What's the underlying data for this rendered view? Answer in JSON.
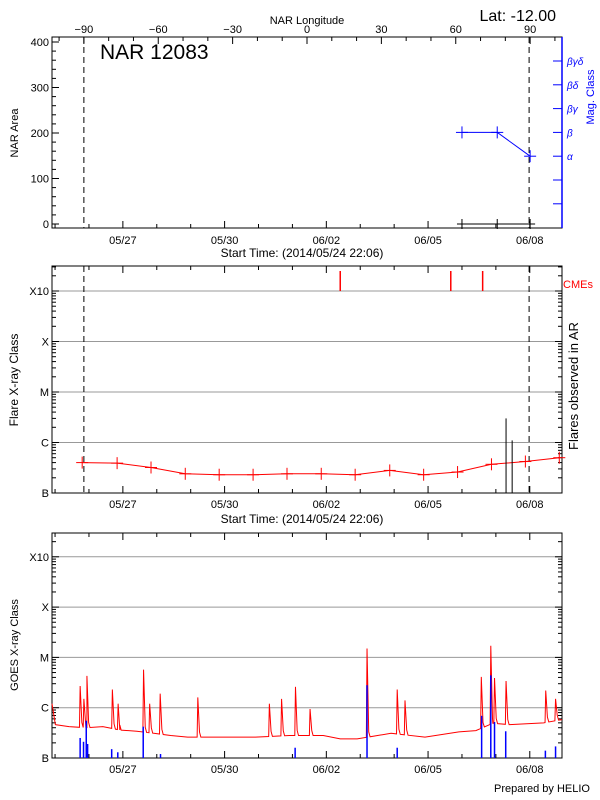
{
  "colors": {
    "axis": "#000000",
    "grid": "#999999",
    "flare": "#ff0000",
    "goes_events": "#0000ff",
    "mag_class": "#0000ff",
    "cme": "#ff0000"
  },
  "chart_data": [
    {
      "type": "line",
      "title": "NAR 12083",
      "corner_label": "Lat: -12.00",
      "xlabel": "Start Time: (2014/05/24 22:06)",
      "x_unit": "days since start time",
      "xlim": [
        0,
        15.04
      ],
      "x_ticks": [
        {
          "day": 2.09,
          "label": "05/27"
        },
        {
          "day": 5.09,
          "label": "05/30"
        },
        {
          "day": 8.09,
          "label": "06/02"
        },
        {
          "day": 11.09,
          "label": "06/05"
        },
        {
          "day": 14.09,
          "label": "06/08"
        }
      ],
      "top_axis": {
        "label": "NAR Longitude",
        "ticks": [
          -90,
          -60,
          -30,
          0,
          30,
          60,
          90
        ],
        "lon_minus90_day": 0.94,
        "lon_plus90_day": 14.1
      },
      "ylabel": "NAR Area",
      "ylim": [
        0,
        400
      ],
      "y_ticks": [
        0,
        100,
        200,
        300,
        400
      ],
      "y2label": "Mag. Class",
      "y2_ticks": [
        "α",
        "β",
        "βγ",
        "βδ",
        "βγδ"
      ],
      "disk_passage_days": [
        0.94,
        14.07
      ],
      "series": [
        {
          "name": "NAR Area",
          "x": [
            12.09,
            13.13,
            14.1
          ],
          "y": [
            0,
            0,
            0
          ]
        },
        {
          "name": "Mag. Class",
          "x": [
            12.09,
            13.13,
            14.1
          ],
          "y": [
            "β",
            "β",
            "α"
          ]
        }
      ]
    },
    {
      "type": "line",
      "xlabel": "Start Time: (2014/05/24 22:06)",
      "ylabel": "Flare X-ray Class",
      "y2label": "Flares observed in AR",
      "y_scale": "log",
      "y_ticks": [
        "B",
        "C",
        "M",
        "X",
        "X10"
      ],
      "grid": true,
      "cme_label": "CMEs",
      "disk_passage_days": [
        0.94,
        14.07
      ],
      "series": [
        {
          "name": "background",
          "x": [
            0.89,
            1.92,
            2.92,
            3.93,
            4.93,
            5.93,
            6.93,
            7.94,
            8.94,
            9.96,
            10.96,
            11.96,
            12.96,
            13.96,
            14.96
          ],
          "y": [
            "B4.0",
            "B3.9",
            "B3.2",
            "B2.4",
            "B2.3",
            "B2.3",
            "B2.4",
            "B2.4",
            "B2.3",
            "B2.8",
            "B2.3",
            "B2.6",
            "B3.7",
            "B4.2",
            "B5.0"
          ]
        }
      ],
      "flares": [
        {
          "day": 13.39,
          "class": "C3.0"
        },
        {
          "day": 13.57,
          "class": "C1.1"
        }
      ],
      "cmes": [
        8.5,
        11.76,
        12.7
      ]
    },
    {
      "type": "line",
      "xlabel": "",
      "ylabel": "GOES X-ray Class",
      "y_scale": "log",
      "y_ticks": [
        "B",
        "C",
        "M",
        "X",
        "X10"
      ],
      "grid": true,
      "footer": "Prepared by HELIO",
      "baseline": {
        "x": [
          0,
          0.1,
          0.5,
          1,
          1.5,
          2,
          2.5,
          3,
          3.5,
          4,
          5,
          6,
          7,
          8,
          8.5,
          9,
          10,
          11,
          12,
          12.5,
          13,
          13.5,
          14,
          14.5,
          15.04
        ],
        "y": [
          "C1.2",
          "B4.6",
          "B4.2",
          "B4.0",
          "B4.2",
          "B3.6",
          "B3.4",
          "B3.1",
          "B2.8",
          "B2.6",
          "B2.6",
          "B2.6",
          "B2.8",
          "B2.8",
          "B2.4",
          "B2.4",
          "B3.1",
          "B2.6",
          "B3.3",
          "B3.5",
          "B4.9",
          "B4.6",
          "B4.8",
          "B5.0",
          "B5.8"
        ]
      },
      "peaks": [
        {
          "day": 0.83,
          "class": "C2.7"
        },
        {
          "day": 0.94,
          "class": "C1.5"
        },
        {
          "day": 1.03,
          "class": "C4.3"
        },
        {
          "day": 1.78,
          "class": "C2.3"
        },
        {
          "day": 1.95,
          "class": "C1.2"
        },
        {
          "day": 2.7,
          "class": "C5.7"
        },
        {
          "day": 2.88,
          "class": "C1.2"
        },
        {
          "day": 3.19,
          "class": "C1.9"
        },
        {
          "day": 4.3,
          "class": "C1.6"
        },
        {
          "day": 6.41,
          "class": "C1.2"
        },
        {
          "day": 6.77,
          "class": "C1.5"
        },
        {
          "day": 7.18,
          "class": "C2.6"
        },
        {
          "day": 7.61,
          "class": "B9.4"
        },
        {
          "day": 9.29,
          "class": "M1.5"
        },
        {
          "day": 10.18,
          "class": "C2.3"
        },
        {
          "day": 10.41,
          "class": "C1.4"
        },
        {
          "day": 12.66,
          "class": "C4.1"
        },
        {
          "day": 12.94,
          "class": "M1.7"
        },
        {
          "day": 13.05,
          "class": "C3.9"
        },
        {
          "day": 13.39,
          "class": "C3.4"
        },
        {
          "day": 14.56,
          "class": "C2.2"
        },
        {
          "day": 14.85,
          "class": "C1.5"
        }
      ],
      "events": [
        {
          "day": 0.83,
          "class": "B2.5"
        },
        {
          "day": 0.93,
          "class": "B2.1"
        },
        {
          "day": 1.01,
          "class": "B5.5"
        },
        {
          "day": 1.05,
          "class": "B1.9"
        },
        {
          "day": 1.76,
          "class": "B1.5"
        },
        {
          "day": 1.94,
          "class": "B1.3"
        },
        {
          "day": 2.69,
          "class": "B4.2"
        },
        {
          "day": 3.2,
          "class": "B1.2"
        },
        {
          "day": 7.17,
          "class": "B1.6"
        },
        {
          "day": 9.29,
          "class": "C2.8"
        },
        {
          "day": 10.18,
          "class": "B1.6"
        },
        {
          "day": 12.67,
          "class": "B6.9"
        },
        {
          "day": 12.94,
          "class": "C4.4"
        },
        {
          "day": 13.05,
          "class": "B5.2"
        },
        {
          "day": 13.38,
          "class": "B3.4"
        },
        {
          "day": 14.55,
          "class": "B1.4"
        },
        {
          "day": 14.85,
          "class": "B1.7"
        }
      ]
    }
  ]
}
